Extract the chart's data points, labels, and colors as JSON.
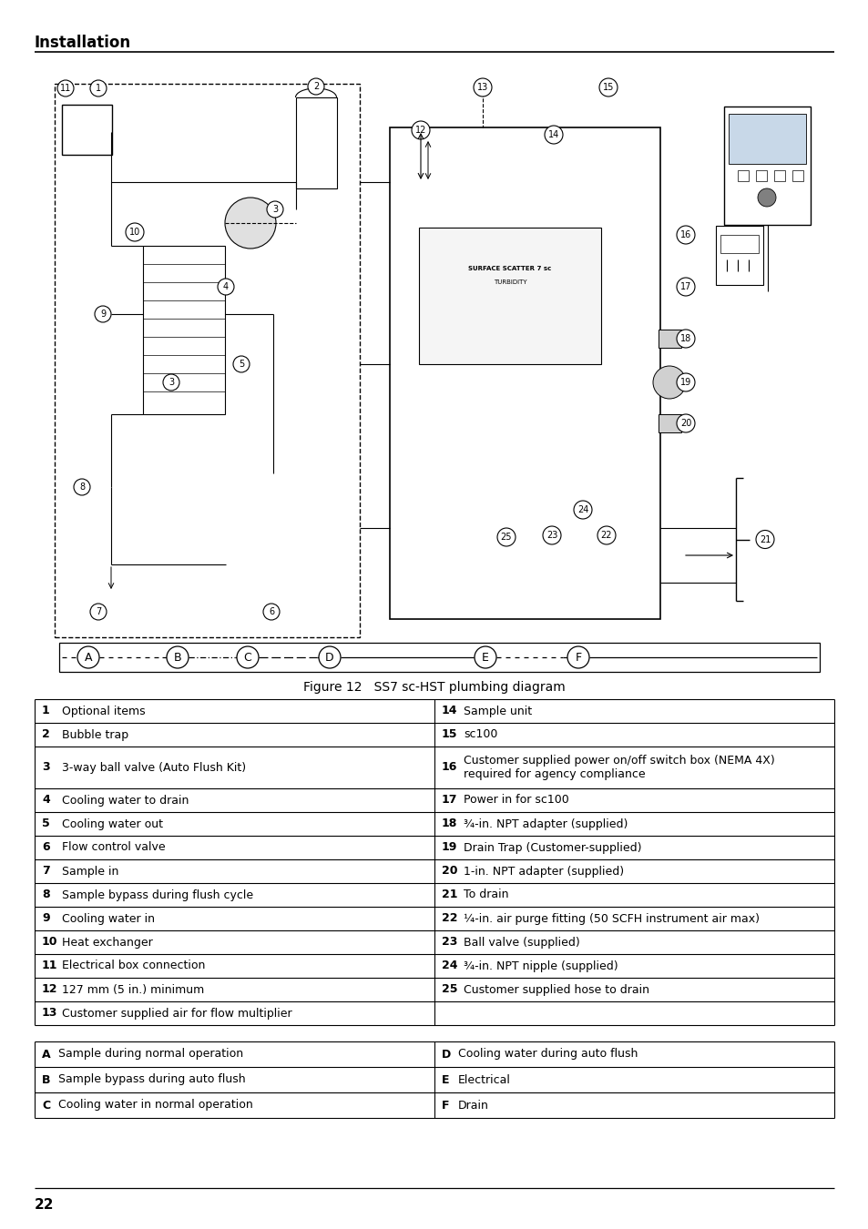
{
  "title": "Installation",
  "figure_caption": "Figure 12   SS7 sc-HST plumbing diagram",
  "page_number": "22",
  "table1_rows": [
    [
      "1",
      "Optional items",
      "14",
      "Sample unit"
    ],
    [
      "2",
      "Bubble trap",
      "15",
      "sc100"
    ],
    [
      "3",
      "3-way ball valve (Auto Flush Kit)",
      "16",
      "Customer supplied power on/off switch box (NEMA 4X)\nrequired for agency compliance"
    ],
    [
      "4",
      "Cooling water to drain",
      "17",
      "Power in for sc100"
    ],
    [
      "5",
      "Cooling water out",
      "18",
      "¾-in. NPT adapter (supplied)"
    ],
    [
      "6",
      "Flow control valve",
      "19",
      "Drain Trap (Customer-supplied)"
    ],
    [
      "7",
      "Sample in",
      "20",
      "1-in. NPT adapter (supplied)"
    ],
    [
      "8",
      "Sample bypass during flush cycle",
      "21",
      "To drain"
    ],
    [
      "9",
      "Cooling water in",
      "22",
      "¼-in. air purge fitting (50 SCFH instrument air max)"
    ],
    [
      "10",
      "Heat exchanger",
      "23",
      "Ball valve (supplied)"
    ],
    [
      "11",
      "Electrical box connection",
      "24",
      "¾-in. NPT nipple (supplied)"
    ],
    [
      "12",
      "127 mm (5 in.) minimum",
      "25",
      "Customer supplied hose to drain"
    ],
    [
      "13",
      "Customer supplied air for flow multiplier",
      "",
      ""
    ]
  ],
  "table2_rows": [
    [
      "A",
      "Sample during normal operation",
      "D",
      "Cooling water during auto flush"
    ],
    [
      "B",
      "Sample bypass during auto flush",
      "E",
      "Electrical"
    ],
    [
      "C",
      "Cooling water in normal operation",
      "F",
      "Drain"
    ]
  ],
  "legend_items": [
    {
      "label": "A",
      "line_style": "dashed"
    },
    {
      "label": "B",
      "line_style": "dashdot"
    },
    {
      "label": "C",
      "line_style": "longdash"
    },
    {
      "label": "D",
      "line_style": "solid"
    },
    {
      "label": "E",
      "line_style": "dashed"
    },
    {
      "label": "F",
      "line_style": "solid"
    }
  ]
}
